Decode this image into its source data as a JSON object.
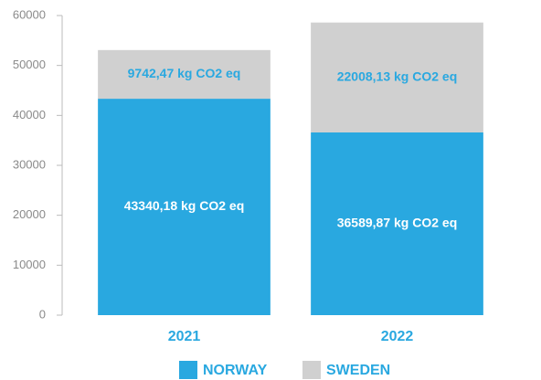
{
  "chart_data": {
    "type": "stacked_bar",
    "categories": [
      "2021",
      "2022"
    ],
    "series": [
      {
        "name": "NORWAY",
        "color": "#29a8e0",
        "label_color": "#ffffff",
        "values": [
          43340.18,
          36589.87
        ],
        "value_labels": [
          "43340,18 kg CO2 eq",
          "36589,87 kg CO2 eq"
        ]
      },
      {
        "name": "SWEDEN",
        "color": "#d0d0d0",
        "label_color": "#29a8e0",
        "values": [
          9742.47,
          22008.13
        ],
        "value_labels": [
          "9742,47 kg CO2 eq",
          "22008,13 kg CO2 eq"
        ]
      }
    ],
    "ylim": [
      0,
      60000
    ],
    "yticks": [
      0,
      10000,
      20000,
      30000,
      40000,
      50000,
      60000
    ],
    "legend": "bottom"
  }
}
